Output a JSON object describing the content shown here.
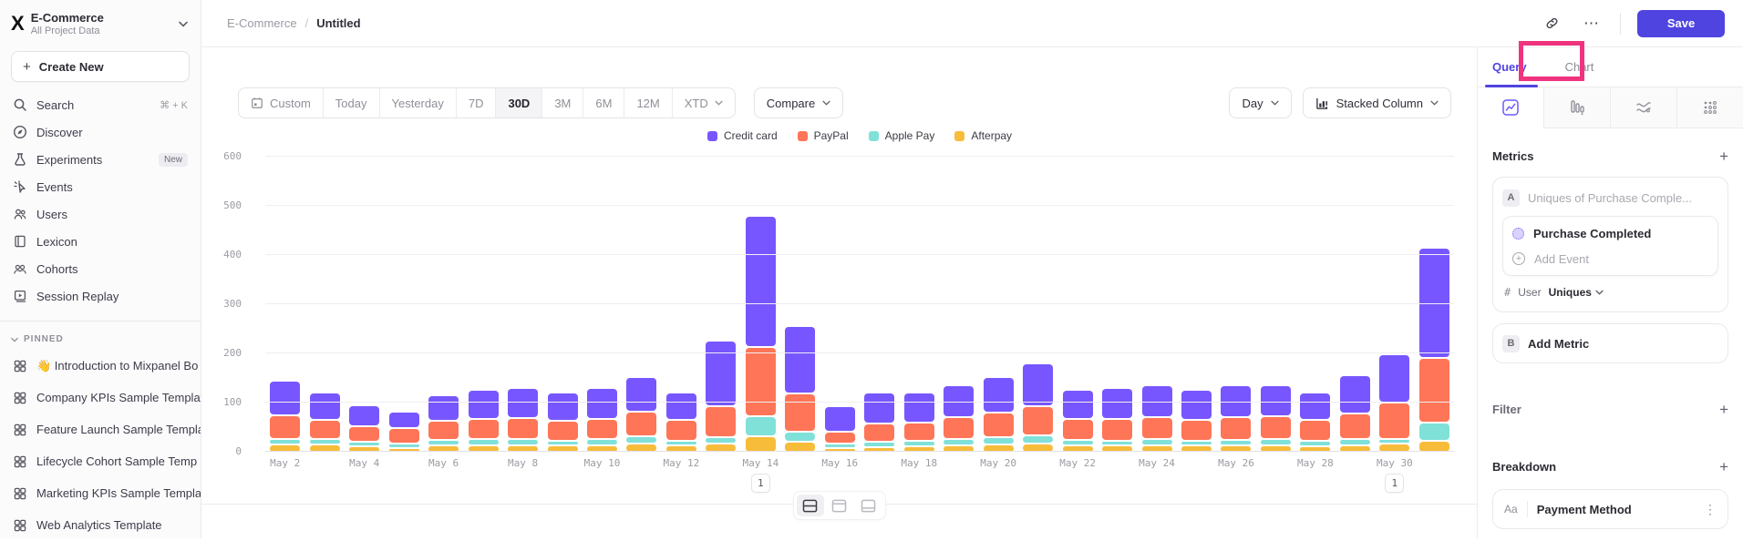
{
  "colors": {
    "accent": "#4f44e0",
    "annotation_highlight": "#f0337e",
    "series": {
      "credit_card": "#7856FF",
      "paypal": "#FF7557",
      "apple_pay": "#80E1D9",
      "afterpay": "#F8BC3B"
    }
  },
  "sidebar": {
    "project": {
      "name": "E-Commerce",
      "subtitle": "All Project Data"
    },
    "create_new_label": "Create New",
    "items": [
      {
        "label": "Search",
        "shortcut": "⌘ + K"
      },
      {
        "label": "Discover"
      },
      {
        "label": "Experiments",
        "badge": "New"
      },
      {
        "label": "Events"
      },
      {
        "label": "Users"
      },
      {
        "label": "Lexicon"
      },
      {
        "label": "Cohorts"
      },
      {
        "label": "Session Replay"
      }
    ],
    "pinned_header": "PINNED",
    "pinned": [
      {
        "label": "👋 Introduction to Mixpanel Bo"
      },
      {
        "label": "Company KPIs Sample Templat"
      },
      {
        "label": "Feature Launch Sample Templa"
      },
      {
        "label": "Lifecycle Cohort Sample Temp"
      },
      {
        "label": "Marketing KPIs Sample Templat"
      },
      {
        "label": "Web Analytics Template"
      }
    ]
  },
  "header": {
    "breadcrumb_root": "E-Commerce",
    "breadcrumb_sep": "/",
    "breadcrumb_current": "Untitled",
    "ellipsis": "⋯",
    "save_label": "Save"
  },
  "toolbar": {
    "date_ranges": {
      "custom": "Custom",
      "today": "Today",
      "yesterday": "Yesterday",
      "d7": "7D",
      "d30": "30D",
      "m3": "3M",
      "m6": "6M",
      "m12": "12M",
      "xtd": "XTD"
    },
    "active_range": "30D",
    "compare_label": "Compare",
    "granularity_label": "Day",
    "chart_type_label": "Stacked Column"
  },
  "panel": {
    "tab_query": "Query",
    "tab_chart": "Chart",
    "metrics_title": "Metrics",
    "plus": "+",
    "metric_a_badge": "A",
    "metric_a_placeholder": "Uniques of Purchase Comple...",
    "event_name": "Purchase Completed",
    "add_event_label": "Add Event",
    "agg_hash": "#",
    "agg_entity": "User",
    "agg_value": "Uniques",
    "metric_b_badge": "B",
    "add_metric_label": "Add Metric",
    "filter_title": "Filter",
    "breakdown_title": "Breakdown",
    "breakdown_icon": "Aa",
    "breakdown_value": "Payment Method",
    "kebab": "⋮"
  },
  "view_switcher": {
    "active": "split-horizontal"
  },
  "chart_data": {
    "type": "bar",
    "stacked": true,
    "title": "",
    "xlabel": "",
    "ylabel": "",
    "ylim": [
      0,
      600
    ],
    "yticks": [
      0,
      100,
      200,
      300,
      400,
      500,
      600
    ],
    "grid": true,
    "legend_position": "top-center",
    "categories": [
      "May 2",
      "May 3",
      "May 4",
      "May 5",
      "May 6",
      "May 7",
      "May 8",
      "May 9",
      "May 10",
      "May 11",
      "May 12",
      "May 13",
      "May 14",
      "May 15",
      "May 16",
      "May 17",
      "May 18",
      "May 19",
      "May 20",
      "May 21",
      "May 22",
      "May 23",
      "May 24",
      "May 25",
      "May 26",
      "May 27",
      "May 28",
      "May 29",
      "May 30",
      "May 31"
    ],
    "x_tick_every": 2,
    "series": [
      {
        "name": "Credit card",
        "color": "#7856FF",
        "values": [
          70,
          55,
          42,
          35,
          52,
          58,
          60,
          57,
          62,
          70,
          55,
          132,
          267,
          137,
          52,
          63,
          60,
          65,
          72,
          88,
          58,
          62,
          66,
          60,
          66,
          64,
          56,
          78,
          98,
          225
        ]
      },
      {
        "name": "PayPal",
        "color": "#FF7557",
        "values": [
          48,
          40,
          32,
          30,
          38,
          42,
          44,
          40,
          42,
          50,
          42,
          64,
          140,
          78,
          24,
          38,
          38,
          45,
          50,
          58,
          43,
          44,
          45,
          42,
          46,
          46,
          42,
          53,
          75,
          130
        ]
      },
      {
        "name": "Apple Pay",
        "color": "#80E1D9",
        "values": [
          12,
          10,
          8,
          7,
          11,
          12,
          12,
          11,
          13,
          15,
          10,
          12,
          41,
          21,
          9,
          10,
          11,
          13,
          14,
          17,
          12,
          11,
          13,
          11,
          12,
          13,
          11,
          13,
          9,
          37
        ]
      },
      {
        "name": "Afterpay",
        "color": "#F8BC3B",
        "values": [
          16,
          17,
          13,
          10,
          15,
          15,
          15,
          14,
          14,
          18,
          15,
          19,
          33,
          22,
          10,
          12,
          13,
          15,
          17,
          19,
          14,
          14,
          14,
          14,
          14,
          15,
          13,
          14,
          18,
          25
        ]
      }
    ],
    "annotations": [
      {
        "x": "May 14",
        "label": "1"
      },
      {
        "x": "May 30",
        "label": "1"
      }
    ]
  }
}
